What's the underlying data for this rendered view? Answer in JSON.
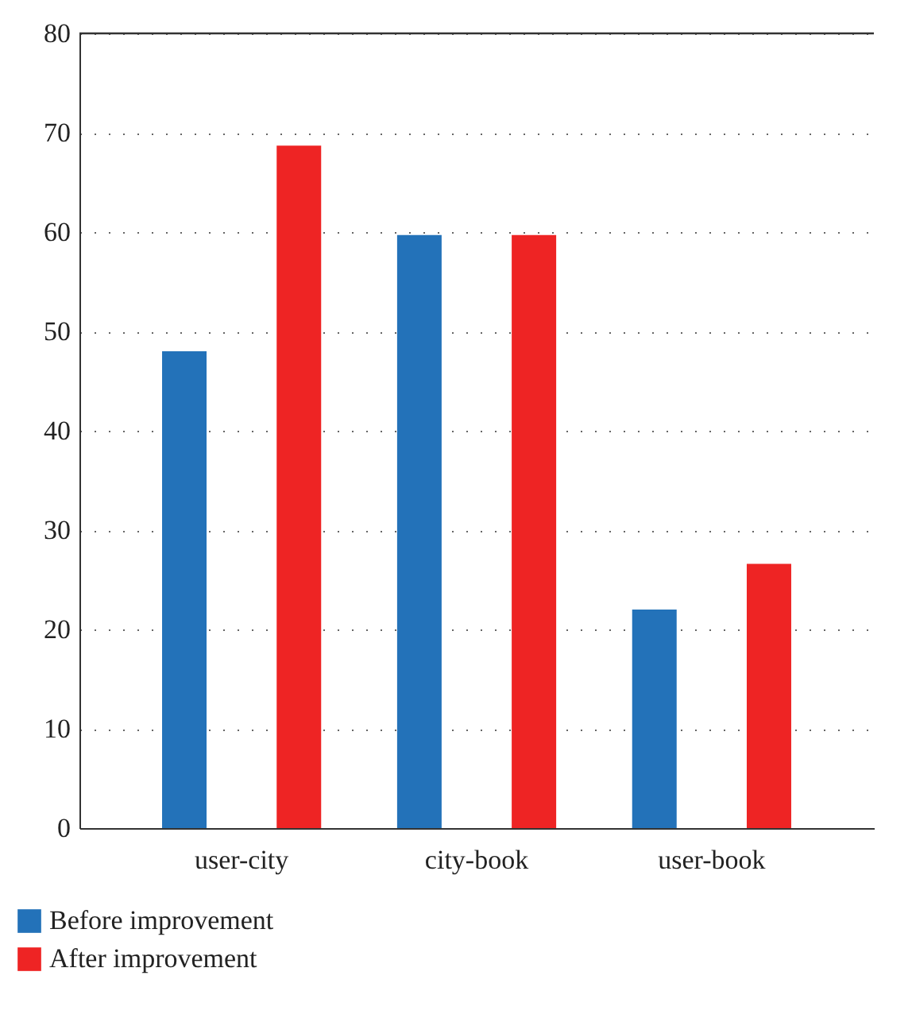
{
  "chart_data": {
    "type": "bar",
    "categories": [
      "user-city",
      "city-book",
      "user-book"
    ],
    "series": [
      {
        "name": "Before improvement",
        "color": "#2372b9",
        "values": [
          48,
          59.7,
          22
        ]
      },
      {
        "name": "After improvement",
        "color": "#ee2424",
        "values": [
          68.7,
          59.7,
          26.6
        ]
      }
    ],
    "ylim": [
      0,
      80
    ],
    "yticks": [
      0,
      10,
      20,
      30,
      40,
      50,
      60,
      70,
      80
    ],
    "grid": "y",
    "legend": "bottom left"
  }
}
